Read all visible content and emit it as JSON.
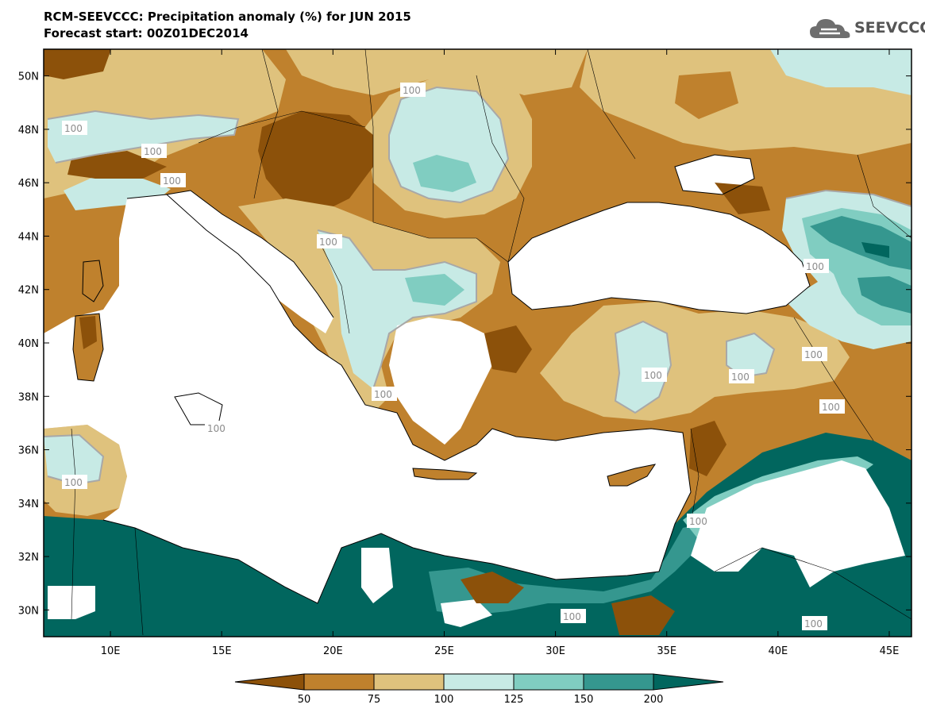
{
  "header": {
    "title": "RCM-SEEVCCC: Precipitation anomaly (%) for JUN 2015",
    "subtitle": "Forecast start: 00Z01DEC2014",
    "logo_text": "SEEVCCC"
  },
  "map": {
    "lon_range": [
      7,
      46
    ],
    "lat_range": [
      29,
      51
    ],
    "lon_ticks": [
      "10E",
      "15E",
      "20E",
      "25E",
      "30E",
      "35E",
      "40E",
      "45E"
    ],
    "lat_ticks": [
      "50N",
      "48N",
      "46N",
      "44N",
      "42N",
      "40N",
      "38N",
      "36N",
      "34N",
      "32N",
      "30N"
    ],
    "contour_labels": [
      "100",
      "100",
      "100",
      "100",
      "100",
      "100",
      "100",
      "100",
      "100",
      "100",
      "100",
      "100",
      "100",
      "100",
      "100",
      "100",
      "100"
    ]
  },
  "colors": {
    "lt50": "#8c510a",
    "c50_75": "#bf812d",
    "c75_100": "#dfc27d",
    "c100_125": "#c7eae5",
    "c125_150": "#80cdc1",
    "c150_200": "#35978f",
    "gt200": "#01665e",
    "contour": "#a8a8a8"
  },
  "legend": {
    "labels": [
      "50",
      "75",
      "100",
      "125",
      "150",
      "200"
    ]
  }
}
